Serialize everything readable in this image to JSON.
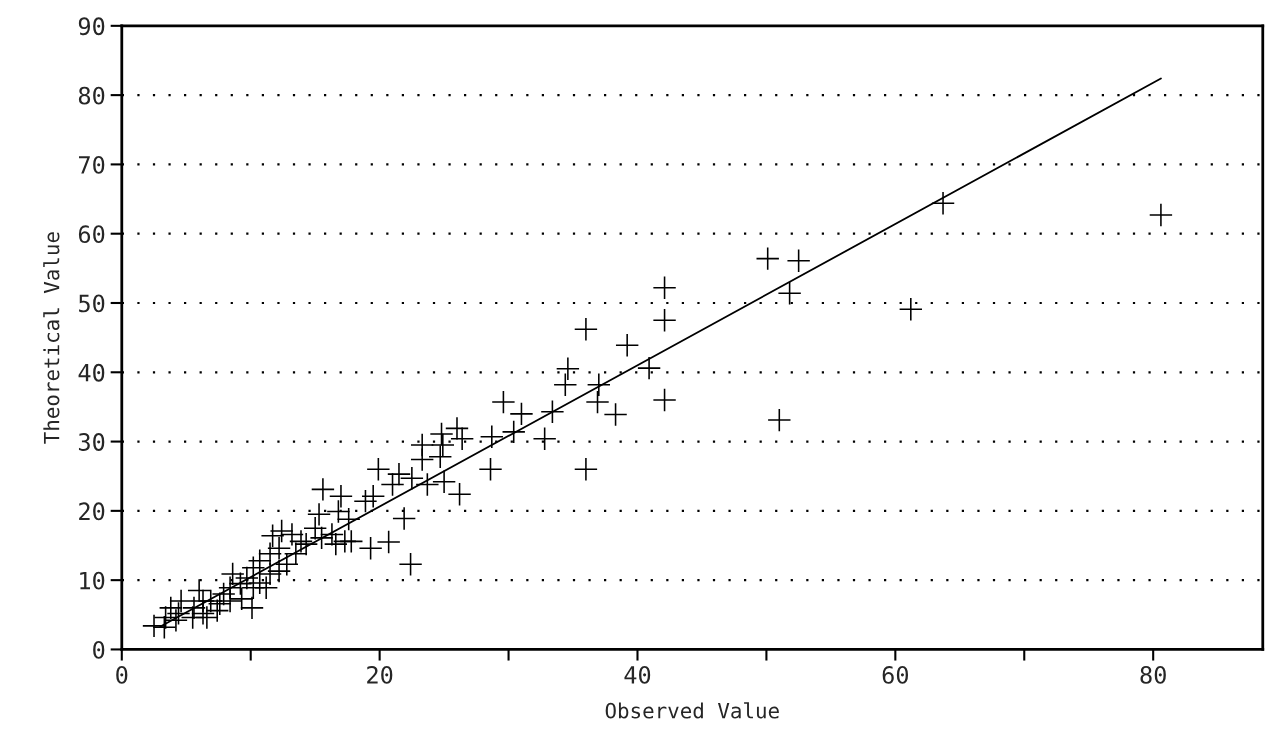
{
  "chart_data": {
    "type": "scatter",
    "xlabel": "Observed Value",
    "ylabel": "Theoretical Value",
    "xlim": [
      0,
      88.5
    ],
    "ylim": [
      0,
      90
    ],
    "xticks": [
      0,
      {
        "value": 10,
        "label": null
      },
      20,
      {
        "value": 30,
        "label": null
      },
      40,
      {
        "value": 50,
        "label": null
      },
      60,
      {
        "value": 70,
        "label": null
      },
      80
    ],
    "yticks": [
      0,
      10,
      20,
      30,
      40,
      50,
      60,
      70,
      80,
      90
    ],
    "grid": "y",
    "series": [
      {
        "color": "#000000",
        "marker": "cross",
        "x": [
          80.6,
          63.7,
          61.2,
          51.0,
          50.1,
          52.5,
          51.8,
          42.1,
          42.1,
          36.0,
          39.2,
          34.6,
          34.4,
          40.9,
          37.0,
          36.9,
          38.3,
          42.1,
          29.6,
          31.0,
          33.4,
          32.8,
          30.4,
          28.7,
          26.4,
          26.0,
          24.8,
          23.3,
          24.9,
          24.7,
          23.3,
          28.6,
          36.0,
          19.9,
          21.5,
          22.5,
          25.0,
          23.7,
          15.6,
          17.0,
          26.2,
          19.5,
          21.0,
          22.4,
          20.7,
          21.9,
          15.3,
          16.8,
          17.6,
          18.9,
          19.3,
          17.8,
          17.3,
          16.6,
          16.3,
          15.5,
          15.0,
          13.9,
          13.2,
          12.4,
          11.7,
          13.5,
          12.8,
          12.2,
          11.5,
          10.7,
          10.2,
          9.7,
          9.2,
          10.2,
          10.7,
          11.2,
          10.1,
          8.6,
          8.4,
          7.9,
          7.6,
          6.9,
          6.3,
          6.0,
          6.3,
          5.6,
          5.5,
          4.6,
          4.4,
          4.2,
          3.8,
          3.4,
          3.3,
          2.5,
          7.4,
          6.6,
          8.4,
          9.3,
          11.5,
          12.2,
          14.3
        ],
        "values": [
          62.7,
          64.4,
          49.1,
          33.1,
          56.4,
          56.1,
          51.4,
          52.2,
          47.5,
          46.2,
          43.9,
          40.5,
          38.2,
          40.6,
          38.2,
          35.7,
          33.9,
          36.0,
          35.7,
          34.0,
          34.3,
          30.4,
          31.4,
          30.7,
          30.4,
          31.9,
          31.1,
          29.5,
          29.5,
          27.8,
          27.4,
          26.0,
          26.0,
          26.0,
          25.3,
          24.7,
          24.2,
          23.8,
          23.1,
          22.1,
          22.4,
          22.1,
          23.8,
          12.3,
          15.5,
          18.9,
          19.5,
          19.9,
          18.8,
          21.4,
          14.6,
          15.6,
          15.6,
          15.2,
          16.6,
          16.1,
          17.5,
          15.6,
          16.6,
          17.1,
          16.4,
          13.8,
          12.3,
          11.3,
          10.9,
          12.8,
          11.8,
          10.3,
          9.5,
          8.9,
          9.6,
          8.9,
          6.0,
          10.9,
          8.9,
          8.0,
          6.6,
          7.0,
          7.0,
          8.5,
          5.2,
          6.0,
          4.6,
          7.0,
          5.2,
          4.2,
          6.0,
          4.6,
          3.2,
          3.4,
          5.6,
          4.6,
          7.0,
          7.3,
          13.8,
          14.6,
          15.2
        ]
      },
      {
        "type": "line",
        "color": "#000000",
        "marker": "none",
        "line_style": "solid",
        "x": [
          3.0,
          80.6
        ],
        "values": [
          3.3,
          82.4
        ]
      }
    ]
  }
}
